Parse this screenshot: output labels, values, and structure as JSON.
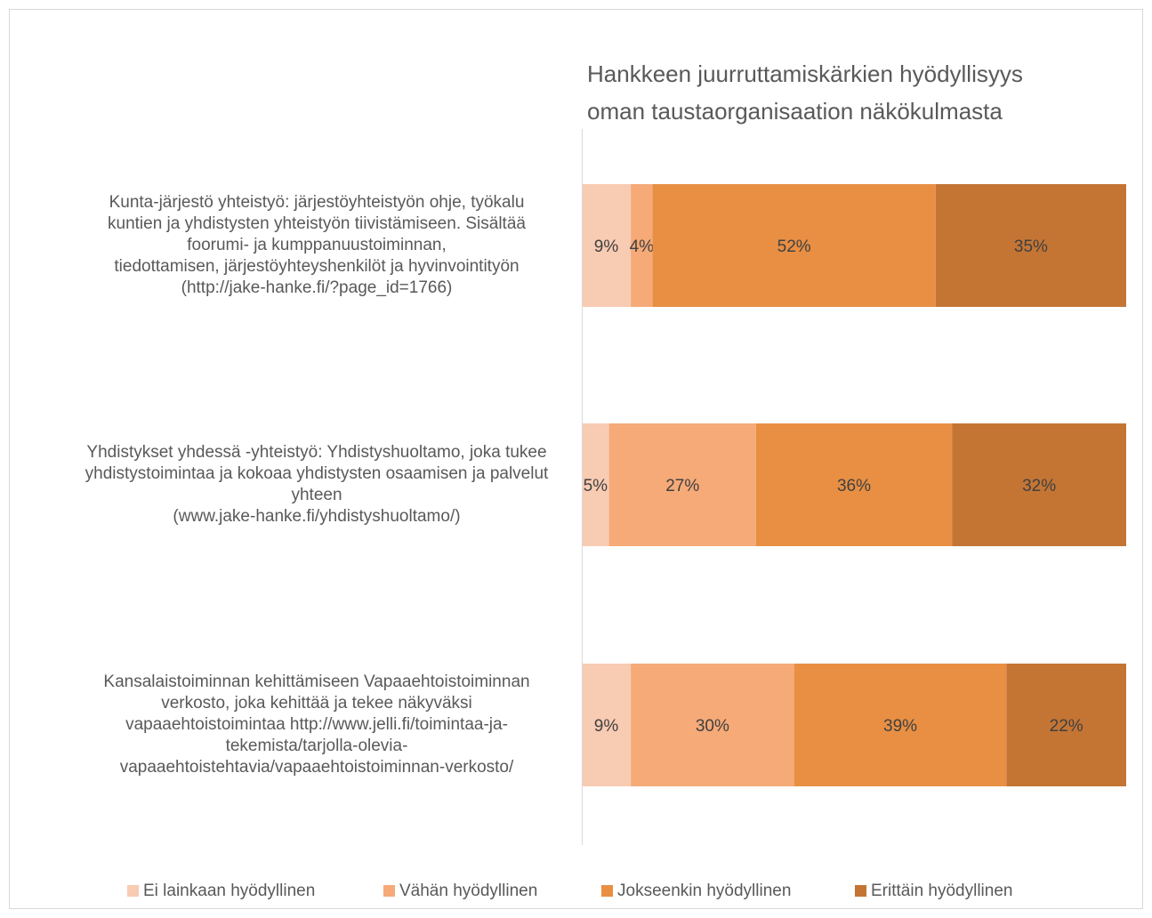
{
  "chart_data": {
    "type": "stacked-bar-horizontal",
    "title": "Hankkeen juurruttamiskärkien hyödyllisyys\noman taustaorganisaation näkökulmasta",
    "categories": [
      "Kunta-järjestö yhteistyö: järjestöyhteistyön ohje, työkalu\nkuntien ja yhdistysten yhteistyön tiivistämiseen. Sisältää\nfoorumi- ja kumppanuustoiminnan,\ntiedottamisen, järjestöyhteyshenkilöt ja hyvinvointityön\n(http://jake-hanke.fi/?page_id=1766)",
      "Yhdistykset yhdessä -yhteistyö: Yhdistyshuoltamo, joka tukee\nyhdistystoimintaa ja kokoaa yhdistysten osaamisen ja palvelut\nyhteen\n(www.jake-hanke.fi/yhdistyshuoltamo/)",
      "Kansalaistoiminnan kehittämiseen Vapaaehtoistoiminnan\nverkosto, joka kehittää ja tekee näkyväksi\nvapaaehtoistoimintaa http://www.jelli.fi/toimintaa-ja-\ntekemista/tarjolla-olevia-\nvapaaehtoistehtavia/vapaaehtoistoiminnan-verkosto/"
    ],
    "series": [
      {
        "name": "Ei lainkaan hyödyllinen",
        "color": "#f8cbb3",
        "values": [
          9,
          5,
          9
        ],
        "value_labels": [
          "9%",
          "5%",
          "9%"
        ]
      },
      {
        "name": "Vähän hyödyllinen",
        "color": "#f5aa78",
        "values": [
          4,
          27,
          30
        ],
        "value_labels": [
          "4%",
          "27%",
          "30%"
        ]
      },
      {
        "name": "Jokseenkin hyödyllinen",
        "color": "#e88f43",
        "values": [
          52,
          36,
          39
        ],
        "value_labels": [
          "52%",
          "36%",
          "39%"
        ]
      },
      {
        "name": "Erittäin hyödyllinen",
        "color": "#c47534",
        "values": [
          35,
          32,
          22
        ],
        "value_labels": [
          "35%",
          "32%",
          "22%"
        ]
      }
    ],
    "xlim": [
      0,
      100
    ],
    "legend": "bottom"
  }
}
